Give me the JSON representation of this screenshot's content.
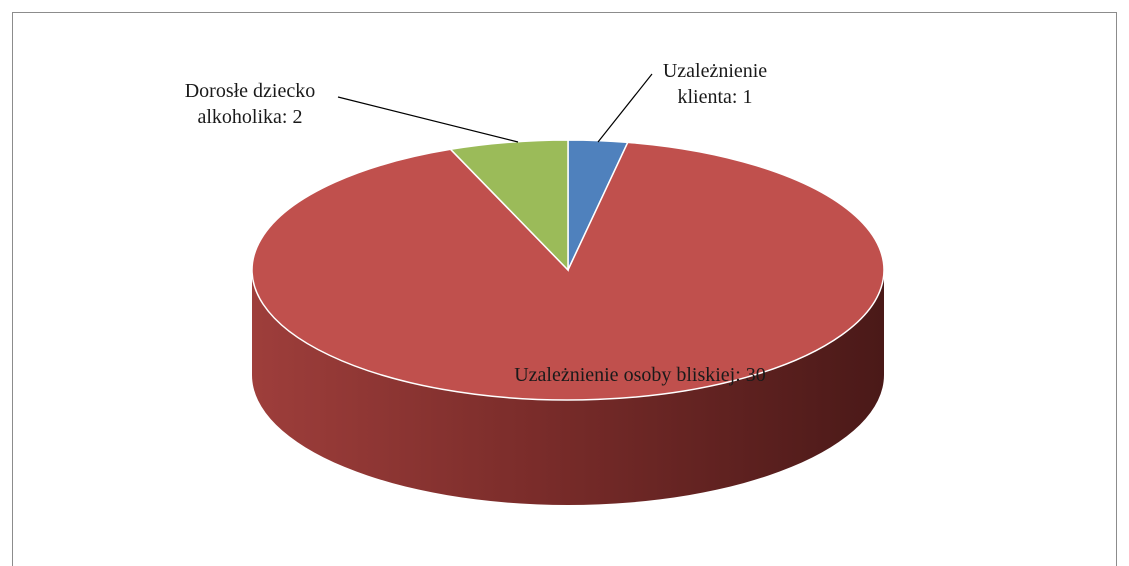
{
  "chart_data": {
    "type": "pie",
    "values": [
      1,
      30,
      2
    ],
    "value_labels": [
      "Uzależnienie klienta: 1",
      "Uzależnienie osoby bliskiej: 30",
      "Dorosłe dziecko alkoholika: 2"
    ],
    "colors": [
      "#4f81bd",
      "#c0504d",
      "#9bbb59"
    ]
  }
}
